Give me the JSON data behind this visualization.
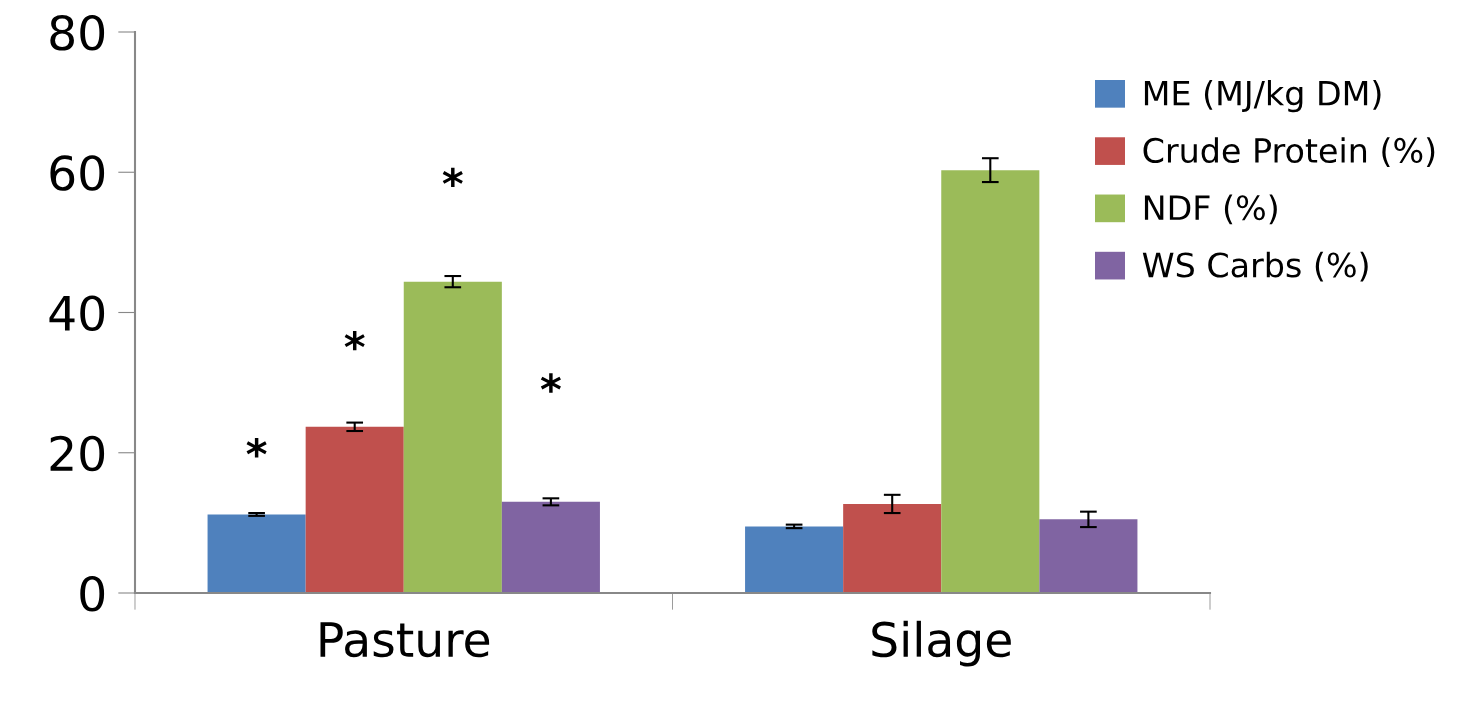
{
  "chart_data": {
    "type": "bar",
    "categories": [
      "Pasture",
      "Silage"
    ],
    "series": [
      {
        "name": "ME (MJ/kg DM)",
        "color": "#4f81bd",
        "values": [
          11.2,
          9.5
        ],
        "errors": [
          0.2,
          0.25
        ]
      },
      {
        "name": "Crude Protein (%)",
        "color": "#c0504d",
        "values": [
          23.7,
          12.7
        ],
        "errors": [
          0.6,
          1.3
        ]
      },
      {
        "name": "NDF (%)",
        "color": "#9bbb59",
        "values": [
          44.4,
          60.3
        ],
        "errors": [
          0.8,
          1.7
        ]
      },
      {
        "name": "WS Carbs (%)",
        "color": "#8064a2",
        "values": [
          13.0,
          10.5
        ],
        "errors": [
          0.5,
          1.1
        ]
      }
    ],
    "ylim": [
      0,
      80
    ],
    "yticks": [
      0,
      20,
      40,
      60,
      80
    ],
    "annotations": [
      "*",
      "*",
      "*",
      "*"
    ],
    "grid": false,
    "legend": "right"
  }
}
